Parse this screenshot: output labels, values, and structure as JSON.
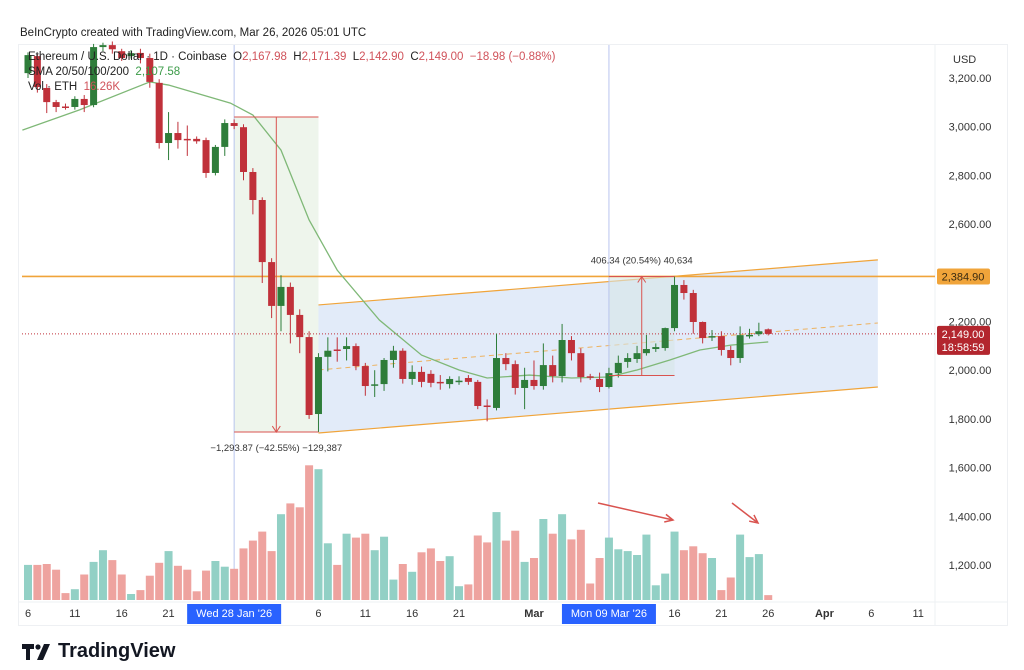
{
  "credit": "BeInCrypto created with TradingView.com, Mar 26, 2026 05:01 UTC",
  "legend": {
    "symbol": "Ethereum / U.S. Dollar · 1D · Coinbase",
    "o_label": "O",
    "o": "2,167.98",
    "h_label": "H",
    "h": "2,171.39",
    "l_label": "L",
    "l": "2,142.90",
    "c_label": "C",
    "c": "2,149.00",
    "change": "−18.98 (−0.88%)",
    "sma_label": "SMA 20/50/100/200",
    "sma_value": "2,107.58",
    "vol_label": "Vol · ETH",
    "vol_value": "16.26K"
  },
  "logo": "TradingView",
  "colors": {
    "up": "#2e7d3a",
    "down": "#c0313a",
    "vol_up": "#92d0c5",
    "vol_down": "#eea39f",
    "sma": "#7fb877",
    "orange": "#f0a43a",
    "channel_fill": "#dde7f8",
    "accent": "#2962ff"
  },
  "chart_data": {
    "type": "candlestick",
    "currency": "USD",
    "ylim": [
      1100,
      3320
    ],
    "y_ticks": [
      "3,200.00",
      "3,000.00",
      "2,800.00",
      "2,600.00",
      "2,200.00",
      "2,000.00",
      "1,800.00",
      "1,600.00",
      "1,400.00",
      "1,200.00"
    ],
    "y_tick_values": [
      3200,
      3000,
      2800,
      2600,
      2200,
      2000,
      1800,
      1600,
      1400,
      1200
    ],
    "x_start": "Jan 6 2026",
    "x_ticks": [
      {
        "day": 0,
        "label": "6"
      },
      {
        "day": 5,
        "label": "11"
      },
      {
        "day": 10,
        "label": "16"
      },
      {
        "day": 15,
        "label": "21"
      },
      {
        "day": 31,
        "label": "6"
      },
      {
        "day": 36,
        "label": "11"
      },
      {
        "day": 41,
        "label": "16"
      },
      {
        "day": 46,
        "label": "21"
      },
      {
        "day": 54,
        "label": "Mar",
        "bold": true
      },
      {
        "day": 69,
        "label": "16"
      },
      {
        "day": 74,
        "label": "21"
      },
      {
        "day": 79,
        "label": "26"
      },
      {
        "day": 85,
        "label": "Apr",
        "bold": true
      },
      {
        "day": 90,
        "label": "6"
      },
      {
        "day": 95,
        "label": "11"
      }
    ],
    "crosshair_labels": [
      {
        "day": 22,
        "label": "Wed 28 Jan '26"
      },
      {
        "day": 62,
        "label": "Mon 09 Mar '26"
      }
    ],
    "ohlc": [
      [
        3220,
        3305,
        3200,
        3294
      ],
      [
        3290,
        3300,
        3140,
        3163
      ],
      [
        3159,
        3175,
        3056,
        3101
      ],
      [
        3101,
        3110,
        3060,
        3081
      ],
      [
        3083,
        3095,
        3070,
        3080
      ],
      [
        3081,
        3125,
        3070,
        3114
      ],
      [
        3114,
        3130,
        3060,
        3089
      ],
      [
        3089,
        3340,
        3080,
        3327
      ],
      [
        3327,
        3345,
        3310,
        3335
      ],
      [
        3335,
        3350,
        3300,
        3318
      ],
      [
        3310,
        3320,
        3270,
        3282
      ],
      [
        3290,
        3315,
        3280,
        3302
      ],
      [
        3303,
        3320,
        3260,
        3282
      ],
      [
        3282,
        3300,
        3160,
        3184
      ],
      [
        3180,
        3195,
        2910,
        2933
      ],
      [
        2933,
        3060,
        2863,
        2974
      ],
      [
        2974,
        3020,
        2910,
        2945
      ],
      [
        2950,
        3005,
        2880,
        2948
      ],
      [
        2950,
        2960,
        2930,
        2940
      ],
      [
        2945,
        2955,
        2790,
        2810
      ],
      [
        2810,
        2925,
        2800,
        2917
      ],
      [
        2917,
        3030,
        2880,
        3015
      ],
      [
        3015,
        3030,
        2990,
        3003
      ],
      [
        2998,
        3010,
        2780,
        2814
      ],
      [
        2814,
        2830,
        2640,
        2699
      ],
      [
        2699,
        2710,
        2358,
        2444
      ],
      [
        2444,
        2460,
        2214,
        2264
      ],
      [
        2264,
        2390,
        2160,
        2342
      ],
      [
        2342,
        2360,
        2110,
        2227
      ],
      [
        2227,
        2250,
        2070,
        2136
      ],
      [
        2136,
        2160,
        1800,
        1816
      ],
      [
        1820,
        2070,
        1746,
        2054
      ],
      [
        2055,
        2135,
        1995,
        2080
      ],
      [
        2085,
        2135,
        2035,
        2082
      ],
      [
        2087,
        2135,
        2040,
        2099
      ],
      [
        2099,
        2110,
        2000,
        2017
      ],
      [
        2017,
        2030,
        1895,
        1935
      ],
      [
        1940,
        2000,
        1890,
        1942
      ],
      [
        1943,
        2050,
        1915,
        2042
      ],
      [
        2042,
        2100,
        2010,
        2080
      ],
      [
        2080,
        2090,
        1945,
        1964
      ],
      [
        1964,
        2020,
        1940,
        1993
      ],
      [
        1993,
        2015,
        1930,
        1952
      ],
      [
        1985,
        2000,
        1930,
        1948
      ],
      [
        1952,
        1980,
        1920,
        1950
      ],
      [
        1943,
        1975,
        1925,
        1964
      ],
      [
        1955,
        1975,
        1940,
        1957
      ],
      [
        1968,
        1980,
        1940,
        1952
      ],
      [
        1952,
        1960,
        1840,
        1853
      ],
      [
        1855,
        1880,
        1790,
        1853
      ],
      [
        1845,
        2150,
        1835,
        2050
      ],
      [
        2050,
        2070,
        2000,
        2025
      ],
      [
        2025,
        2040,
        1900,
        1927
      ],
      [
        1927,
        2010,
        1840,
        1960
      ],
      [
        1960,
        2040,
        1920,
        1935
      ],
      [
        1935,
        2110,
        1920,
        2021
      ],
      [
        2021,
        2060,
        1950,
        1976
      ],
      [
        1976,
        2190,
        1950,
        2124
      ],
      [
        2124,
        2140,
        2040,
        2070
      ],
      [
        2070,
        2090,
        1950,
        1972
      ],
      [
        1975,
        1985,
        1960,
        1973
      ],
      [
        1964,
        1990,
        1910,
        1931
      ],
      [
        1931,
        2010,
        1925,
        1988
      ],
      [
        1988,
        2060,
        1970,
        2030
      ],
      [
        2034,
        2070,
        2010,
        2050
      ],
      [
        2046,
        2100,
        2030,
        2070
      ],
      [
        2070,
        2145,
        2060,
        2087
      ],
      [
        2087,
        2110,
        2075,
        2095
      ],
      [
        2091,
        2175,
        2080,
        2173
      ],
      [
        2173,
        2385,
        2160,
        2350
      ],
      [
        2350,
        2370,
        2290,
        2317
      ],
      [
        2317,
        2330,
        2150,
        2198
      ],
      [
        2198,
        2200,
        2110,
        2132
      ],
      [
        2138,
        2165,
        2120,
        2140
      ],
      [
        2140,
        2160,
        2060,
        2083
      ],
      [
        2083,
        2100,
        2020,
        2050
      ],
      [
        2050,
        2180,
        2030,
        2144
      ],
      [
        2140,
        2170,
        2130,
        2145
      ],
      [
        2148,
        2195,
        2140,
        2160
      ],
      [
        2167.98,
        2171.39,
        2142.9,
        2149
      ]
    ],
    "volume_k": [
      117,
      117,
      120,
      101,
      23,
      36,
      85,
      127,
      166,
      133,
      85,
      20,
      33,
      81,
      124,
      163,
      114,
      101,
      29,
      98,
      130,
      111,
      104,
      172,
      198,
      228,
      163,
      286,
      322,
      309,
      449,
      436,
      189,
      117,
      221,
      208,
      221,
      166,
      211,
      68,
      120,
      94,
      159,
      172,
      130,
      146,
      46,
      52,
      215,
      192,
      293,
      198,
      231,
      127,
      140,
      270,
      221,
      286,
      202,
      234,
      55,
      140,
      208,
      169,
      163,
      150,
      218,
      49,
      88,
      228,
      166,
      179,
      156,
      140,
      33,
      75,
      218,
      143,
      153,
      16.26
    ],
    "volume_max_k": 460,
    "sma": [
      [
        -0.6,
        2986
      ],
      [
        5.5,
        3069
      ],
      [
        13,
        3184
      ],
      [
        15,
        3171
      ],
      [
        21.6,
        3097
      ],
      [
        24,
        3048
      ],
      [
        27,
        2904
      ],
      [
        30,
        2617
      ],
      [
        33,
        2411
      ],
      [
        37.5,
        2206
      ],
      [
        42,
        2062
      ],
      [
        46,
        2001
      ],
      [
        49,
        1968
      ],
      [
        53.5,
        1980
      ],
      [
        58,
        1968
      ],
      [
        62,
        1972
      ],
      [
        65,
        2001
      ],
      [
        68.5,
        2042
      ],
      [
        71.7,
        2083
      ],
      [
        75,
        2103
      ],
      [
        79,
        2116
      ]
    ],
    "resistance": {
      "price": 2384.9,
      "label": "2,384.90"
    },
    "last_price": {
      "price": 2149.0,
      "label": "2,149.00",
      "countdown": "18:58:59"
    },
    "channel": {
      "start_day": 31,
      "end_day": 90.7,
      "upper": [
        2268,
        2453
      ],
      "lower": [
        1742,
        1931
      ],
      "mid": [
        2001,
        2194
      ]
    },
    "measures": [
      {
        "from_day": 22,
        "to_day": 31,
        "top": 3040,
        "bottom": 1746,
        "label": "−1,293.87 (−42.55%) −129,387",
        "direction": "down"
      },
      {
        "from_day": 62,
        "to_day": 69,
        "top": 2384.9,
        "bottom": 1978,
        "label": "406.34 (20.54%) 40,634",
        "direction": "up"
      }
    ]
  }
}
